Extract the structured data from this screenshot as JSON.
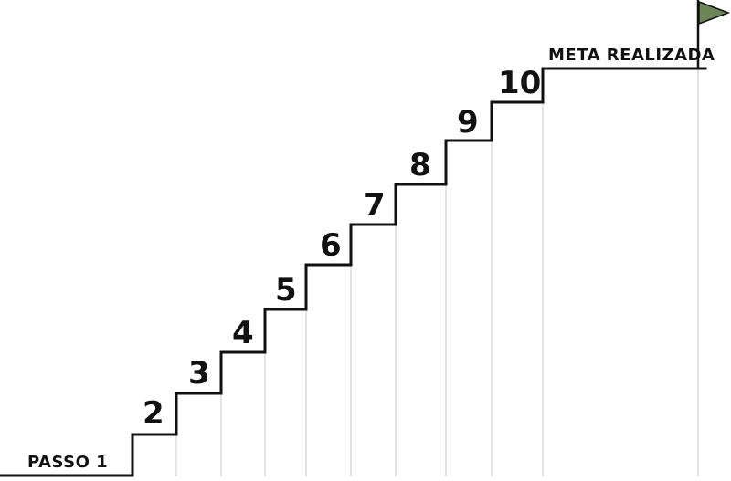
{
  "diagram": {
    "start_label": "PASSO 1",
    "end_label": "META REALIZADA",
    "steps": [
      {
        "label": "2"
      },
      {
        "label": "3"
      },
      {
        "label": "4"
      },
      {
        "label": "5"
      },
      {
        "label": "6"
      },
      {
        "label": "7"
      },
      {
        "label": "8"
      },
      {
        "label": "9"
      },
      {
        "label": "10"
      }
    ],
    "flag_color": "#6b8555",
    "line_color": "#111111",
    "guide_color": "#dcdcdc"
  }
}
